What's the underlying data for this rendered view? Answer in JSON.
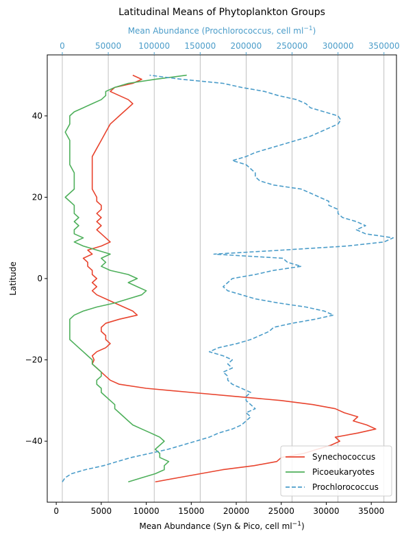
{
  "chart_data": {
    "type": "line",
    "title": "Latitudinal Means of Phytoplankton Groups",
    "xlabel_bottom": "Mean Abundance (Syn & Pico, cell ml",
    "xlabel_bottom_sup": "−1",
    "xlabel_bottom_tail": ")",
    "xlabel_top": "Mean Abundance (Prochlorococcus, cell ml",
    "xlabel_top_sup": "−1",
    "xlabel_top_tail": ")",
    "ylabel": "Latitude",
    "xlim_bottom": [
      -1000,
      37800
    ],
    "xlim_top": [
      0,
      380000
    ],
    "ylim": [
      -55,
      55
    ],
    "bottom_ticks": [
      0,
      5000,
      10000,
      15000,
      20000,
      25000,
      30000,
      35000
    ],
    "bottom_tick_labels": [
      "0",
      "5000",
      "10000",
      "15000",
      "20000",
      "25000",
      "30000",
      "35000"
    ],
    "top_ticks": [
      0,
      50000,
      100000,
      150000,
      200000,
      250000,
      300000,
      350000
    ],
    "top_tick_labels": [
      "0",
      "50000",
      "100000",
      "150000",
      "200000",
      "250000",
      "300000",
      "350000"
    ],
    "y_ticks": [
      -40,
      -20,
      0,
      20,
      40
    ],
    "y_tick_labels": [
      "−40",
      "−20",
      "0",
      "20",
      "40"
    ],
    "grid": "vertical lines at top-axis ticks",
    "legend_position": "lower-right",
    "series": [
      {
        "name": "Synechococcus",
        "axis": "bottom",
        "color": "#e8432d",
        "dash": "solid",
        "points": [
          [
            -50,
            11000
          ],
          [
            -49,
            13500
          ],
          [
            -48,
            16000
          ],
          [
            -47,
            18500
          ],
          [
            -46,
            22000
          ],
          [
            -45,
            24500
          ],
          [
            -44,
            25000
          ],
          [
            -43,
            27500
          ],
          [
            -42,
            29000
          ],
          [
            -41,
            30500
          ],
          [
            -40,
            31500
          ],
          [
            -39,
            31000
          ],
          [
            -38,
            33500
          ],
          [
            -37,
            35500
          ],
          [
            -36,
            34500
          ],
          [
            -35,
            33000
          ],
          [
            -34,
            33500
          ],
          [
            -33,
            32000
          ],
          [
            -32,
            31000
          ],
          [
            -31,
            28500
          ],
          [
            -30,
            25000
          ],
          [
            -29,
            20000
          ],
          [
            -28,
            15000
          ],
          [
            -27,
            10000
          ],
          [
            -26,
            7000
          ],
          [
            -25,
            6000
          ],
          [
            -24,
            5500
          ],
          [
            -23,
            5000
          ],
          [
            -22,
            4500
          ],
          [
            -21,
            4000
          ],
          [
            -20,
            4200
          ],
          [
            -19,
            4000
          ],
          [
            -18,
            4500
          ],
          [
            -17,
            5500
          ],
          [
            -16,
            6000
          ],
          [
            -15,
            5500
          ],
          [
            -14,
            5500
          ],
          [
            -13,
            5000
          ],
          [
            -12,
            5000
          ],
          [
            -11,
            5500
          ],
          [
            -10,
            7000
          ],
          [
            -9,
            9000
          ],
          [
            -8,
            8500
          ],
          [
            -7,
            7500
          ],
          [
            -6,
            6500
          ],
          [
            -5,
            5500
          ],
          [
            -4,
            4500
          ],
          [
            -3,
            4000
          ],
          [
            -2,
            4500
          ],
          [
            -1,
            4000
          ],
          [
            0,
            4500
          ],
          [
            1,
            4000
          ],
          [
            2,
            4000
          ],
          [
            3,
            3500
          ],
          [
            4,
            3500
          ],
          [
            5,
            3000
          ],
          [
            6,
            4000
          ],
          [
            7,
            3500
          ],
          [
            8,
            5000
          ],
          [
            9,
            6000
          ],
          [
            10,
            5500
          ],
          [
            11,
            5000
          ],
          [
            12,
            4500
          ],
          [
            13,
            5000
          ],
          [
            14,
            4500
          ],
          [
            15,
            5000
          ],
          [
            16,
            4500
          ],
          [
            17,
            5000
          ],
          [
            18,
            5000
          ],
          [
            19,
            4500
          ],
          [
            20,
            4500
          ],
          [
            22,
            4000
          ],
          [
            24,
            4000
          ],
          [
            26,
            4000
          ],
          [
            28,
            4000
          ],
          [
            30,
            4000
          ],
          [
            32,
            4500
          ],
          [
            34,
            5000
          ],
          [
            36,
            5500
          ],
          [
            38,
            6000
          ],
          [
            40,
            7000
          ],
          [
            41,
            7500
          ],
          [
            42,
            8000
          ],
          [
            43,
            8500
          ],
          [
            44,
            8000
          ],
          [
            45,
            7000
          ],
          [
            46,
            6000
          ],
          [
            47,
            6500
          ],
          [
            48,
            8500
          ],
          [
            49,
            9500
          ],
          [
            50,
            8500
          ]
        ]
      },
      {
        "name": "Picoeukaryotes",
        "axis": "bottom",
        "color": "#4daf5a",
        "dash": "solid",
        "points": [
          [
            -50,
            8000
          ],
          [
            -49,
            9500
          ],
          [
            -48,
            11000
          ],
          [
            -47,
            12000
          ],
          [
            -46,
            12000
          ],
          [
            -45,
            12500
          ],
          [
            -44,
            11500
          ],
          [
            -43,
            11500
          ],
          [
            -42,
            11000
          ],
          [
            -41,
            11500
          ],
          [
            -40,
            12000
          ],
          [
            -39,
            11500
          ],
          [
            -38,
            10500
          ],
          [
            -37,
            9500
          ],
          [
            -36,
            8500
          ],
          [
            -35,
            8000
          ],
          [
            -34,
            7500
          ],
          [
            -33,
            7000
          ],
          [
            -32,
            6500
          ],
          [
            -31,
            6500
          ],
          [
            -30,
            6000
          ],
          [
            -29,
            5500
          ],
          [
            -28,
            5000
          ],
          [
            -27,
            5000
          ],
          [
            -26,
            4500
          ],
          [
            -25,
            4500
          ],
          [
            -24,
            5000
          ],
          [
            -23,
            5000
          ],
          [
            -22,
            4500
          ],
          [
            -21,
            4000
          ],
          [
            -20,
            4000
          ],
          [
            -19,
            3500
          ],
          [
            -18,
            3000
          ],
          [
            -17,
            2500
          ],
          [
            -16,
            2000
          ],
          [
            -15,
            1500
          ],
          [
            -14,
            1500
          ],
          [
            -13,
            1500
          ],
          [
            -12,
            1500
          ],
          [
            -11,
            1500
          ],
          [
            -10,
            1500
          ],
          [
            -9,
            2000
          ],
          [
            -8,
            3000
          ],
          [
            -7,
            4500
          ],
          [
            -6,
            6500
          ],
          [
            -5,
            8000
          ],
          [
            -4,
            9500
          ],
          [
            -3,
            10000
          ],
          [
            -2,
            9000
          ],
          [
            -1,
            8000
          ],
          [
            0,
            9000
          ],
          [
            1,
            8000
          ],
          [
            2,
            6000
          ],
          [
            3,
            5000
          ],
          [
            4,
            5500
          ],
          [
            5,
            5000
          ],
          [
            6,
            6000
          ],
          [
            7,
            4500
          ],
          [
            8,
            3000
          ],
          [
            9,
            2000
          ],
          [
            10,
            3000
          ],
          [
            11,
            2000
          ],
          [
            12,
            2000
          ],
          [
            13,
            2500
          ],
          [
            14,
            2000
          ],
          [
            15,
            2500
          ],
          [
            16,
            2000
          ],
          [
            17,
            2000
          ],
          [
            18,
            2000
          ],
          [
            19,
            1500
          ],
          [
            20,
            1000
          ],
          [
            21,
            1500
          ],
          [
            22,
            2000
          ],
          [
            24,
            2000
          ],
          [
            26,
            2000
          ],
          [
            28,
            1500
          ],
          [
            30,
            1500
          ],
          [
            32,
            1500
          ],
          [
            34,
            1500
          ],
          [
            36,
            1000
          ],
          [
            38,
            1500
          ],
          [
            40,
            1500
          ],
          [
            41,
            2000
          ],
          [
            42,
            3000
          ],
          [
            43,
            4000
          ],
          [
            44,
            5000
          ],
          [
            45,
            5500
          ],
          [
            46,
            5500
          ],
          [
            47,
            6500
          ],
          [
            48,
            8000
          ],
          [
            49,
            11000
          ],
          [
            50,
            14500
          ]
        ]
      },
      {
        "name": "Prochlorococcus",
        "axis": "top",
        "color": "#4a9cc9",
        "dash": "dashed",
        "points": [
          [
            -50,
            0
          ],
          [
            -49,
            3000
          ],
          [
            -48,
            10000
          ],
          [
            -47,
            25000
          ],
          [
            -46,
            45000
          ],
          [
            -45,
            60000
          ],
          [
            -44,
            75000
          ],
          [
            -43,
            95000
          ],
          [
            -42,
            115000
          ],
          [
            -41,
            130000
          ],
          [
            -40,
            145000
          ],
          [
            -39,
            160000
          ],
          [
            -38,
            170000
          ],
          [
            -37,
            185000
          ],
          [
            -36,
            195000
          ],
          [
            -35,
            200000
          ],
          [
            -34,
            205000
          ],
          [
            -33,
            200000
          ],
          [
            -32,
            210000
          ],
          [
            -31,
            205000
          ],
          [
            -30,
            200000
          ],
          [
            -29,
            200000
          ],
          [
            -28,
            205000
          ],
          [
            -27,
            195000
          ],
          [
            -26,
            185000
          ],
          [
            -25,
            180000
          ],
          [
            -24,
            180000
          ],
          [
            -23,
            175000
          ],
          [
            -22,
            185000
          ],
          [
            -21,
            180000
          ],
          [
            -20,
            185000
          ],
          [
            -19,
            175000
          ],
          [
            -18,
            160000
          ],
          [
            -17,
            170000
          ],
          [
            -16,
            190000
          ],
          [
            -15,
            205000
          ],
          [
            -14,
            215000
          ],
          [
            -13,
            225000
          ],
          [
            -12,
            230000
          ],
          [
            -11,
            250000
          ],
          [
            -10,
            275000
          ],
          [
            -9,
            295000
          ],
          [
            -8,
            285000
          ],
          [
            -7,
            265000
          ],
          [
            -6,
            235000
          ],
          [
            -5,
            210000
          ],
          [
            -4,
            195000
          ],
          [
            -3,
            180000
          ],
          [
            -2,
            175000
          ],
          [
            -1,
            180000
          ],
          [
            0,
            185000
          ],
          [
            1,
            210000
          ],
          [
            2,
            230000
          ],
          [
            3,
            260000
          ],
          [
            4,
            245000
          ],
          [
            5,
            240000
          ],
          [
            6,
            165000
          ],
          [
            7,
            240000
          ],
          [
            8,
            310000
          ],
          [
            9,
            350000
          ],
          [
            10,
            360000
          ],
          [
            11,
            330000
          ],
          [
            12,
            320000
          ],
          [
            13,
            330000
          ],
          [
            14,
            320000
          ],
          [
            15,
            305000
          ],
          [
            16,
            300000
          ],
          [
            17,
            300000
          ],
          [
            18,
            290000
          ],
          [
            19,
            290000
          ],
          [
            20,
            280000
          ],
          [
            21,
            270000
          ],
          [
            22,
            260000
          ],
          [
            23,
            230000
          ],
          [
            24,
            215000
          ],
          [
            25,
            210000
          ],
          [
            26,
            210000
          ],
          [
            27,
            205000
          ],
          [
            28,
            200000
          ],
          [
            29,
            185000
          ],
          [
            30,
            200000
          ],
          [
            31,
            210000
          ],
          [
            32,
            225000
          ],
          [
            33,
            240000
          ],
          [
            34,
            255000
          ],
          [
            35,
            270000
          ],
          [
            36,
            280000
          ],
          [
            37,
            290000
          ],
          [
            38,
            300000
          ],
          [
            39,
            303000
          ],
          [
            40,
            300000
          ],
          [
            41,
            285000
          ],
          [
            42,
            270000
          ],
          [
            43,
            265000
          ],
          [
            44,
            255000
          ],
          [
            45,
            235000
          ],
          [
            46,
            220000
          ],
          [
            47,
            195000
          ],
          [
            48,
            175000
          ],
          [
            49,
            130000
          ],
          [
            50,
            95000
          ]
        ]
      }
    ]
  }
}
